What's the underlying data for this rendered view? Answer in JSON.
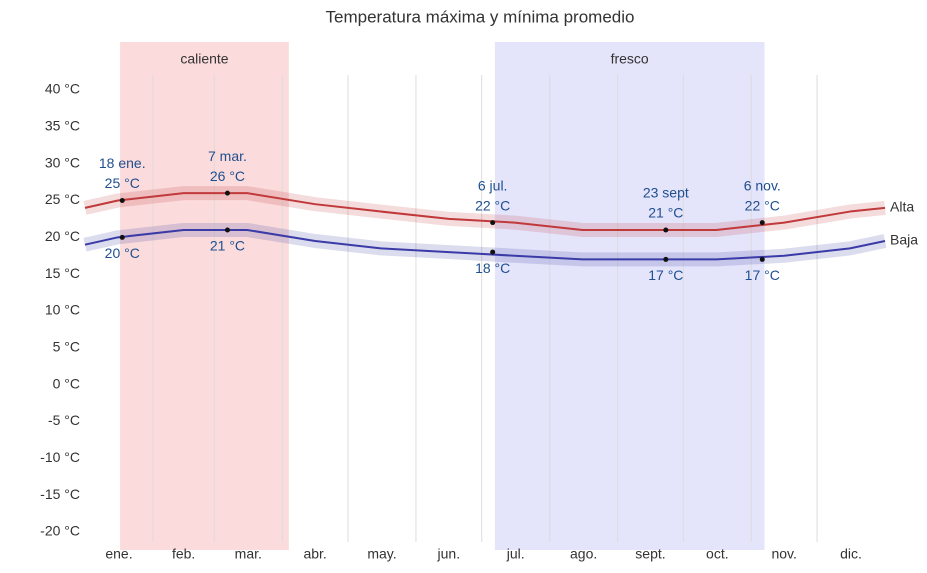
{
  "chart_data": {
    "type": "line",
    "title": "Temperatura máxima y mínima promedio",
    "xlim": [
      0,
      365
    ],
    "xticks": [
      {
        "value": 15.5,
        "label": "ene."
      },
      {
        "value": 45,
        "label": "feb."
      },
      {
        "value": 74.5,
        "label": "mar."
      },
      {
        "value": 105,
        "label": "abr."
      },
      {
        "value": 135.5,
        "label": "may."
      },
      {
        "value": 166,
        "label": "jun."
      },
      {
        "value": 196.5,
        "label": "jul."
      },
      {
        "value": 227.5,
        "label": "ago."
      },
      {
        "value": 258,
        "label": "sept."
      },
      {
        "value": 288.5,
        "label": "oct."
      },
      {
        "value": 319,
        "label": "nov."
      },
      {
        "value": 349.5,
        "label": "dic."
      }
    ],
    "xgrid": [
      31,
      59,
      90,
      120,
      151,
      181,
      212,
      243,
      273,
      304,
      334
    ],
    "ylim": [
      -20,
      40
    ],
    "yticks": [
      {
        "value": 40,
        "label": "40 °C"
      },
      {
        "value": 35,
        "label": "35 °C"
      },
      {
        "value": 30,
        "label": "30 °C"
      },
      {
        "value": 25,
        "label": "25 °C"
      },
      {
        "value": 20,
        "label": "20 °C"
      },
      {
        "value": 15,
        "label": "15 °C"
      },
      {
        "value": 10,
        "label": "10 °C"
      },
      {
        "value": 5,
        "label": "5 °C"
      },
      {
        "value": 0,
        "label": "0 °C"
      },
      {
        "value": -5,
        "label": "-5 °C"
      },
      {
        "value": -10,
        "label": "-10 °C"
      },
      {
        "value": -15,
        "label": "-15 °C"
      },
      {
        "value": -20,
        "label": "-20 °C"
      }
    ],
    "seasons": [
      {
        "label": "caliente",
        "start": 16,
        "end": 93,
        "color": "#f7b0b0"
      },
      {
        "label": "fresco",
        "start": 187,
        "end": 310,
        "color": "#c4c4f7"
      }
    ],
    "x": [
      0,
      15,
      45,
      74,
      105,
      135,
      166,
      196,
      227,
      258,
      288,
      319,
      349,
      365
    ],
    "series": [
      {
        "name": "Alta",
        "color": "#c0393b",
        "values": [
          24,
          25,
          26,
          26,
          24.5,
          23.5,
          22.5,
          22,
          21,
          21,
          21,
          22,
          23.5,
          24
        ]
      },
      {
        "name": "Baja",
        "color": "#3b3ba8",
        "values": [
          19,
          20,
          21,
          21,
          19.5,
          18.5,
          18,
          17.5,
          17,
          17,
          17,
          17.5,
          18.5,
          19.5
        ]
      }
    ],
    "annotations": [
      {
        "x": 17,
        "label": "18 ene.",
        "points": [
          {
            "value": 25,
            "label": "25 °C"
          },
          {
            "value": 20,
            "label": "20 °C"
          }
        ]
      },
      {
        "x": 65,
        "label": "7 mar.",
        "points": [
          {
            "value": 26,
            "label": "26 °C"
          },
          {
            "value": 21,
            "label": "21 °C"
          }
        ]
      },
      {
        "x": 186,
        "label": "6 jul.",
        "points": [
          {
            "value": 22,
            "label": "22 °C"
          },
          {
            "value": 18,
            "label": "18 °C"
          }
        ]
      },
      {
        "x": 265,
        "label": "23 sept",
        "points": [
          {
            "value": 21,
            "label": "21 °C"
          },
          {
            "value": 17,
            "label": "17 °C"
          }
        ]
      },
      {
        "x": 309,
        "label": "6 nov.",
        "points": [
          {
            "value": 22,
            "label": "22 °C"
          },
          {
            "value": 17,
            "label": "17 °C"
          }
        ]
      }
    ]
  }
}
